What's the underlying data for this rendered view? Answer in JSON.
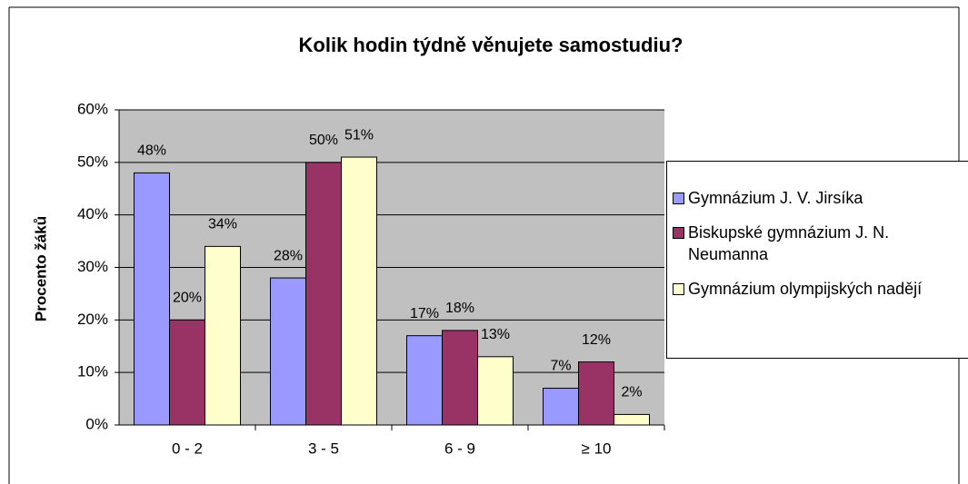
{
  "chart_data": {
    "type": "bar",
    "title": "Kolik hodin týdně věnujete samostudiu?",
    "y_label": "Procento žáků",
    "categories": [
      "0 - 2",
      "3 - 5",
      "6 - 9",
      "≥ 10"
    ],
    "series": [
      {
        "name": "Gymnázium J. V. Jirsíka",
        "color": "#9999ff",
        "values": [
          48,
          28,
          17,
          7
        ],
        "value_labels": [
          "48%",
          "28%",
          "17%",
          "7%"
        ]
      },
      {
        "name": "Biskupské gymnázium J. N. Neumanna",
        "color": "#993366",
        "values": [
          20,
          50,
          18,
          12
        ],
        "value_labels": [
          "20%",
          "50%",
          "18%",
          "12%"
        ]
      },
      {
        "name": "Gymnázium olympijských nadějí",
        "color": "#ffffcc",
        "values": [
          34,
          51,
          13,
          2
        ],
        "value_labels": [
          "34%",
          "51%",
          "13%",
          "2%"
        ]
      }
    ],
    "ylim": [
      0,
      60
    ],
    "yticks": [
      {
        "value": 0,
        "label": "0%"
      },
      {
        "value": 10,
        "label": "10%"
      },
      {
        "value": 20,
        "label": "20%"
      },
      {
        "value": 30,
        "label": "30%"
      },
      {
        "value": 40,
        "label": "40%"
      },
      {
        "value": 50,
        "label": "50%"
      },
      {
        "value": 60,
        "label": "60%"
      }
    ],
    "grid": true,
    "plot_background": "#c0c0c0",
    "legend": "right"
  }
}
